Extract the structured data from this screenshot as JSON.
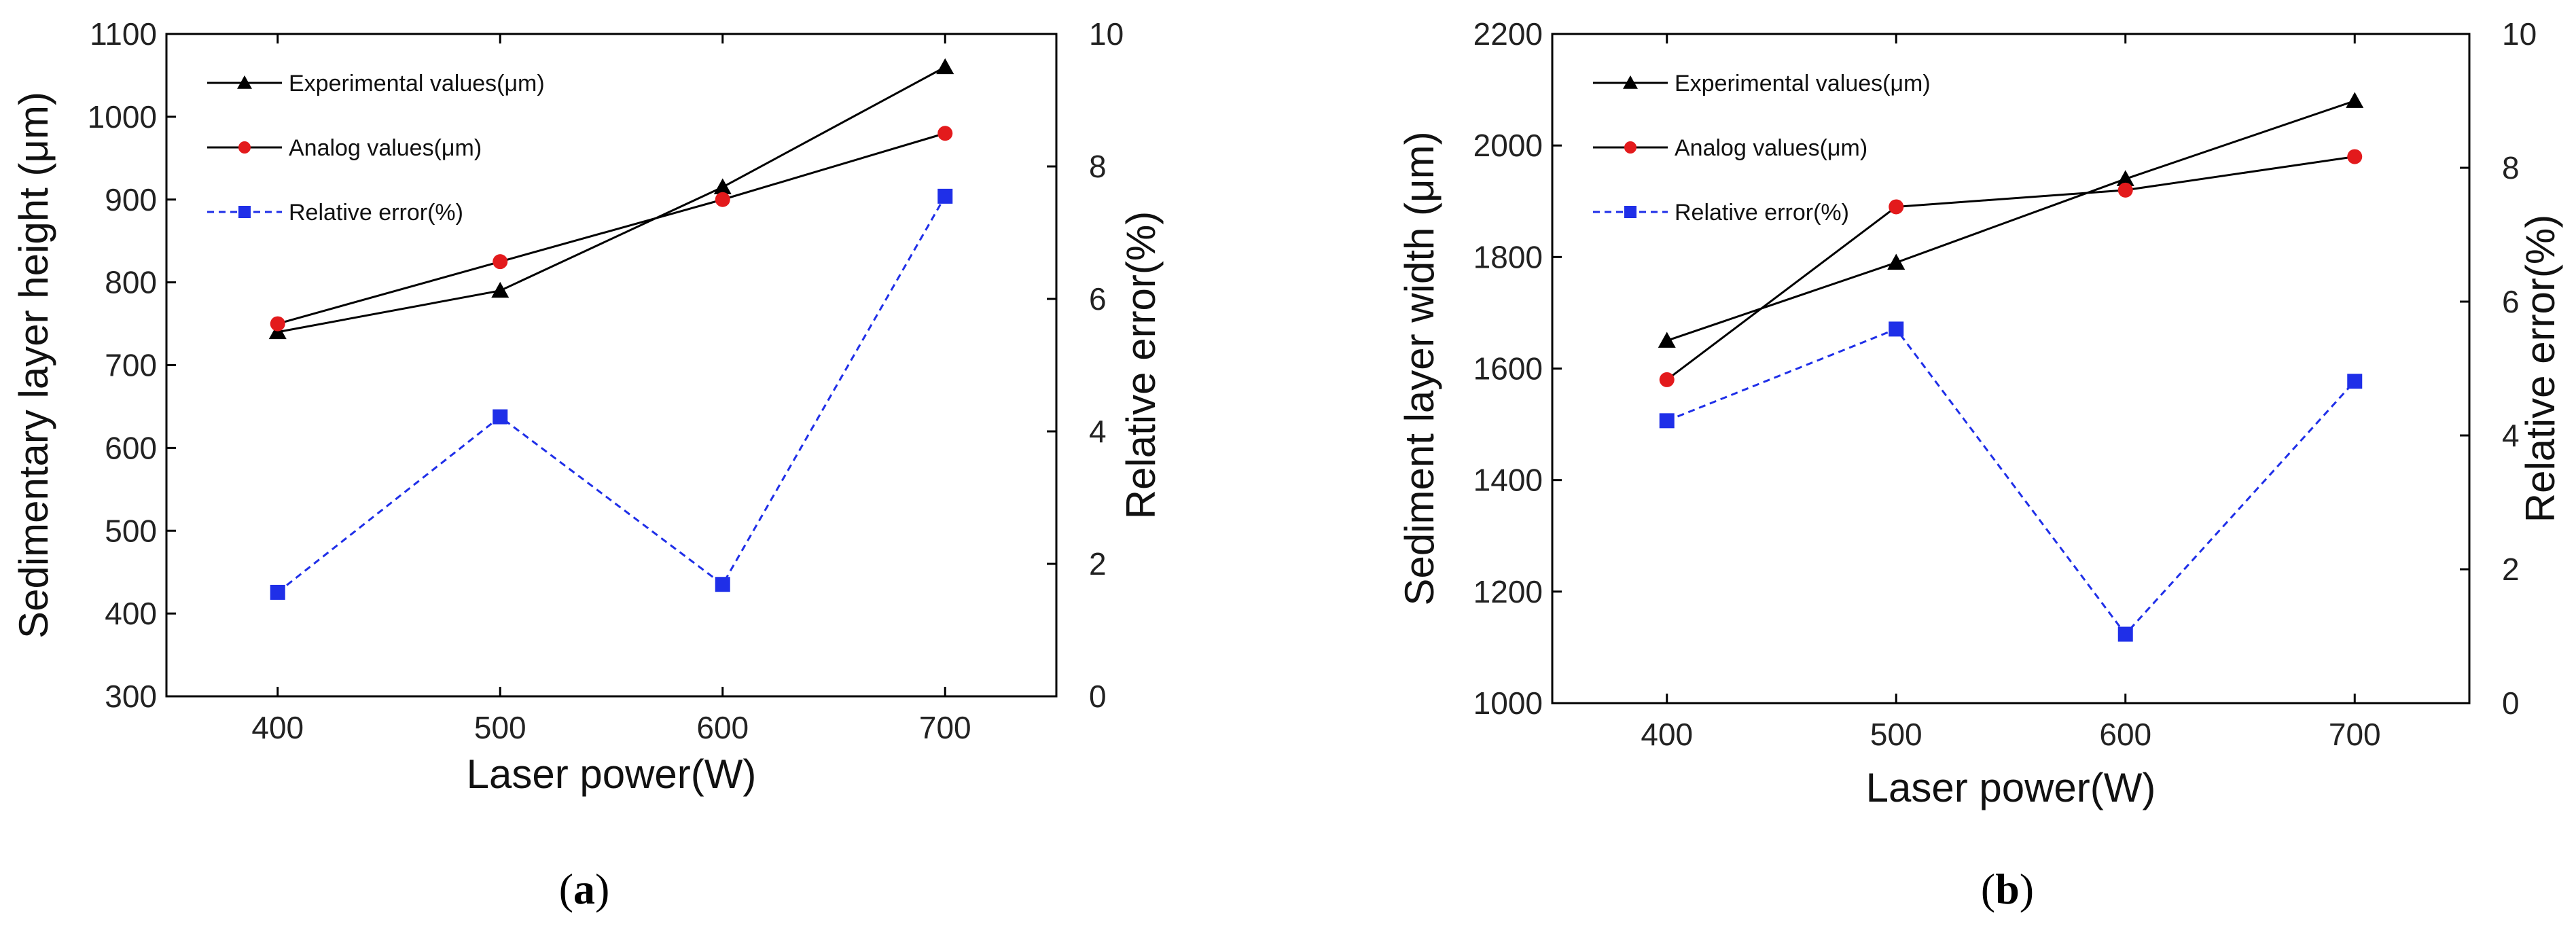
{
  "colors": {
    "experimental": "#000000",
    "analog": "#e31a1c",
    "relative_error": "#1f2fe8",
    "frame": "#000000"
  },
  "chart_data": [
    {
      "type": "line",
      "panel_label": "a",
      "xlabel": "Laser power(W)",
      "ylabel": "Sedimentary layer height (μm)",
      "y2label": "Relative error(%)",
      "x": [
        400,
        500,
        600,
        700
      ],
      "xlim": [
        350,
        750
      ],
      "ylim": [
        300,
        1100
      ],
      "y2lim": [
        0,
        10
      ],
      "xticks": [
        400,
        500,
        600,
        700
      ],
      "yticks": [
        300,
        400,
        500,
        600,
        700,
        800,
        900,
        1000,
        1100
      ],
      "y2ticks": [
        0,
        2,
        4,
        6,
        8,
        10
      ],
      "legend_position": "top-left",
      "series": [
        {
          "name": "Experimental values(μm)",
          "axis": "left",
          "marker": "triangle",
          "style": "solid",
          "values": [
            740,
            790,
            915,
            1060
          ]
        },
        {
          "name": "Analog values(μm)",
          "axis": "left",
          "marker": "circle",
          "style": "solid",
          "values": [
            750,
            825,
            900,
            980
          ]
        },
        {
          "name": "Relative error(%)",
          "axis": "right",
          "marker": "square",
          "style": "dashed",
          "values": [
            1.57,
            4.22,
            1.69,
            7.55
          ]
        }
      ]
    },
    {
      "type": "line",
      "panel_label": "b",
      "xlabel": "Laser power(W)",
      "ylabel": "Sediment layer width (μm)",
      "y2label": "Relative error(%)",
      "x": [
        400,
        500,
        600,
        700
      ],
      "xlim": [
        350,
        750
      ],
      "ylim": [
        1000,
        2200
      ],
      "y2lim": [
        0,
        10
      ],
      "xticks": [
        400,
        500,
        600,
        700
      ],
      "yticks": [
        1000,
        1200,
        1400,
        1600,
        1800,
        2000,
        2200
      ],
      "y2ticks": [
        0,
        2,
        4,
        6,
        8,
        10
      ],
      "legend_position": "top-left",
      "series": [
        {
          "name": "Experimental values(μm)",
          "axis": "left",
          "marker": "triangle",
          "style": "solid",
          "values": [
            1650,
            1790,
            1940,
            2080
          ]
        },
        {
          "name": "Analog values(μm)",
          "axis": "left",
          "marker": "circle",
          "style": "solid",
          "values": [
            1580,
            1890,
            1920,
            1980
          ]
        },
        {
          "name": "Relative error(%)",
          "axis": "right",
          "marker": "square",
          "style": "dashed",
          "values": [
            4.22,
            5.59,
            1.03,
            4.81
          ]
        }
      ]
    }
  ]
}
